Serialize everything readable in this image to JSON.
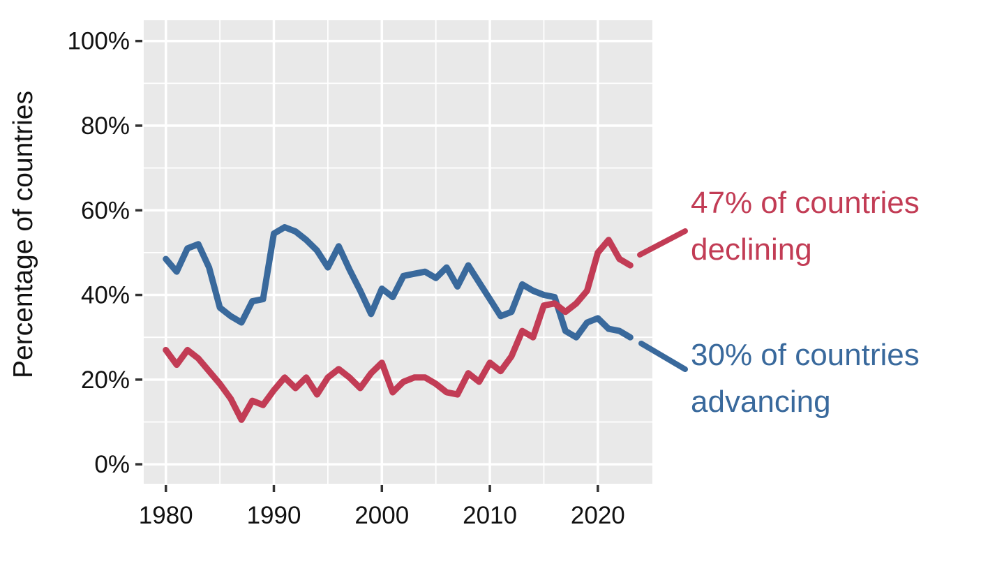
{
  "chart": {
    "ylabel": "Percentage of countries",
    "annotations": {
      "declining": {
        "line1": "47% of countries",
        "line2": "declining"
      },
      "advancing": {
        "line1": "30% of countries",
        "line2": "advancing"
      }
    },
    "colors": {
      "declining": "#c23c55",
      "advancing": "#39699c",
      "panel_bg": "#e9e9e9",
      "gridline": "#ffffff",
      "tick_mark": "#333333",
      "text": "#111111"
    }
  },
  "chart_data": {
    "type": "line",
    "title": "",
    "xlabel": "",
    "ylabel": "Percentage of countries",
    "x": [
      1980,
      1981,
      1982,
      1983,
      1984,
      1985,
      1986,
      1987,
      1988,
      1989,
      1990,
      1991,
      1992,
      1993,
      1994,
      1995,
      1996,
      1997,
      1998,
      1999,
      2000,
      2001,
      2002,
      2003,
      2004,
      2005,
      2006,
      2007,
      2008,
      2009,
      2010,
      2011,
      2012,
      2013,
      2014,
      2015,
      2016,
      2017,
      2018,
      2019,
      2020,
      2021,
      2022,
      2023
    ],
    "series": [
      {
        "name": "advancing",
        "label": "30% of countries advancing",
        "color": "#39699c",
        "values": [
          48.5,
          45.5,
          51,
          52,
          46.5,
          37,
          35,
          33.5,
          38.5,
          39,
          54.5,
          56,
          55,
          53,
          50.5,
          46.5,
          51.5,
          46,
          41,
          35.5,
          41.5,
          39.5,
          44.5,
          45,
          45.5,
          44,
          46.5,
          42,
          47,
          43,
          39,
          35,
          36,
          42.5,
          41,
          40,
          39.5,
          31.5,
          30,
          33.5,
          34.5,
          32,
          31.5,
          30
        ]
      },
      {
        "name": "declining",
        "label": "47% of countries declining",
        "color": "#c23c55",
        "values": [
          27,
          23.5,
          27,
          25,
          22,
          19,
          15.5,
          10.5,
          15,
          14,
          17.5,
          20.5,
          18,
          20.5,
          16.5,
          20.5,
          22.5,
          20.5,
          18,
          21.5,
          24,
          17,
          19.5,
          20.5,
          20.5,
          19,
          17,
          16.5,
          21.5,
          19.5,
          24,
          22,
          25.5,
          31.5,
          30,
          37.5,
          38,
          36,
          38,
          41,
          50,
          53,
          48.5,
          47
        ]
      }
    ],
    "x_major_ticks": [
      1980,
      1990,
      2000,
      2010,
      2020
    ],
    "x_minor_ticks": [
      1985,
      1995,
      2005,
      2015
    ],
    "y_major_ticks": [
      0,
      20,
      40,
      60,
      80,
      100
    ],
    "y_tick_labels": [
      "0%",
      "20%",
      "40%",
      "60%",
      "80%",
      "100%"
    ],
    "y_minor_ticks": [
      10,
      30,
      50,
      70,
      90
    ],
    "xlim": [
      1977.95,
      2025.05
    ],
    "ylim": [
      -4.6,
      104.9
    ],
    "grid": "white-on-gray",
    "legend": "annotations-at-line-ends"
  }
}
